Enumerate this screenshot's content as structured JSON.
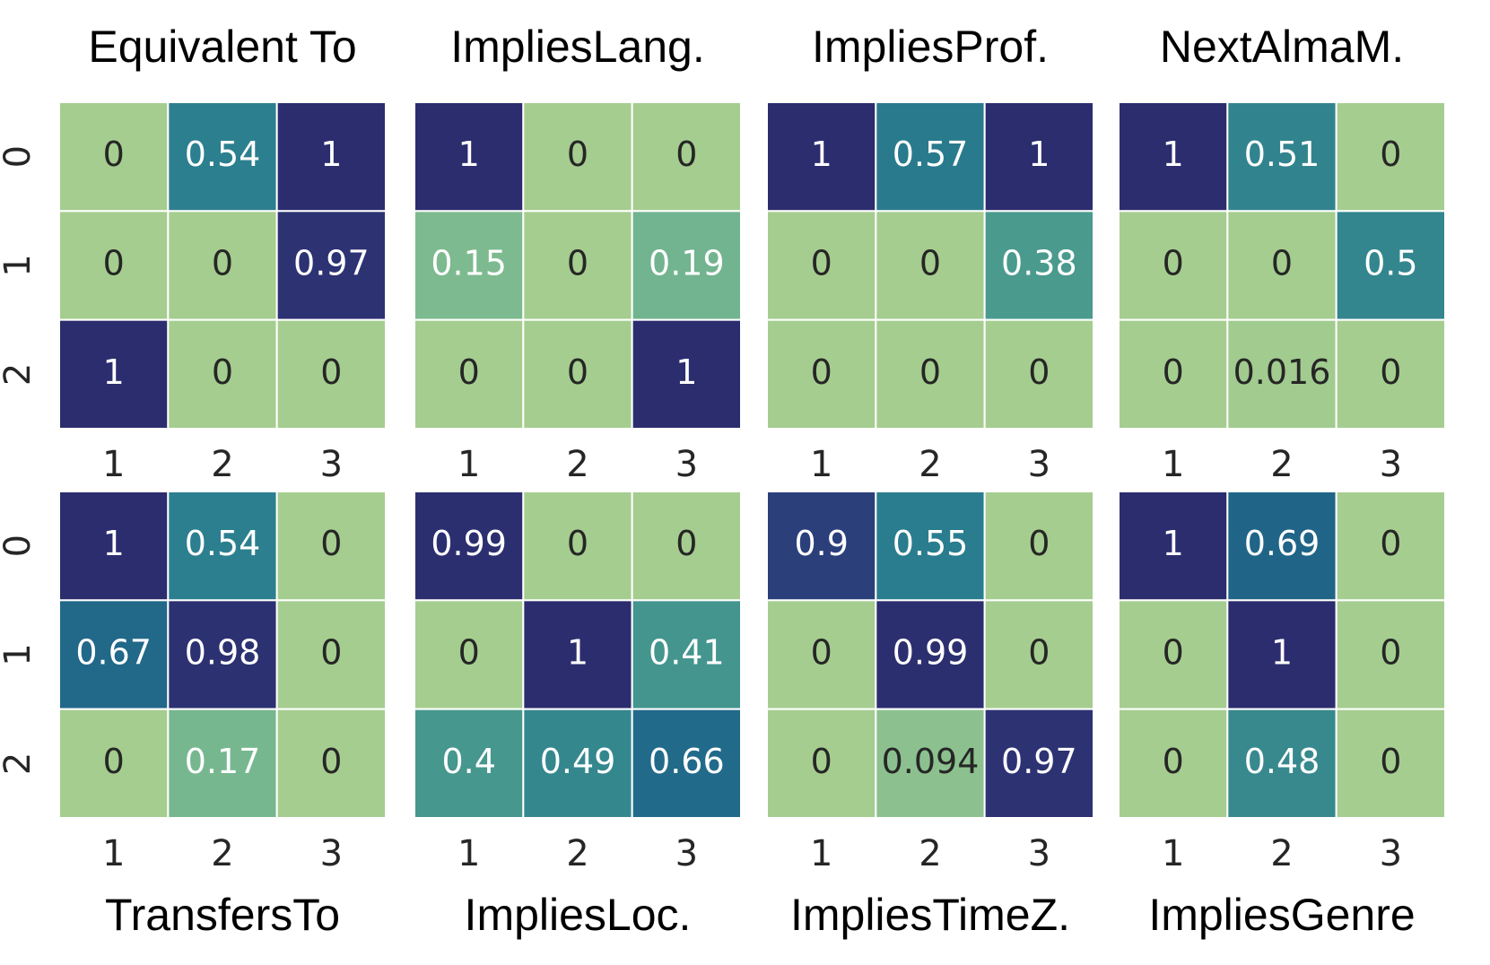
{
  "chart_data": [
    {
      "type": "heatmap",
      "title": "Equivalent To",
      "title_position": "top",
      "x": [
        "1",
        "2",
        "3"
      ],
      "y": [
        "0",
        "1",
        "2"
      ],
      "values": [
        [
          0,
          0.54,
          1
        ],
        [
          0,
          0,
          0.97
        ],
        [
          1,
          0,
          0
        ]
      ]
    },
    {
      "type": "heatmap",
      "title": "ImpliesLang.",
      "title_position": "top",
      "x": [
        "1",
        "2",
        "3"
      ],
      "y": [
        "0",
        "1",
        "2"
      ],
      "values": [
        [
          1,
          0,
          0
        ],
        [
          0.15,
          0,
          0.19
        ],
        [
          0,
          0,
          1
        ]
      ]
    },
    {
      "type": "heatmap",
      "title": "ImpliesProf.",
      "title_position": "top",
      "x": [
        "1",
        "2",
        "3"
      ],
      "y": [
        "0",
        "1",
        "2"
      ],
      "values": [
        [
          1,
          0.57,
          1
        ],
        [
          0,
          0,
          0.38
        ],
        [
          0,
          0,
          0
        ]
      ]
    },
    {
      "type": "heatmap",
      "title": "NextAlmaM.",
      "title_position": "top",
      "x": [
        "1",
        "2",
        "3"
      ],
      "y": [
        "0",
        "1",
        "2"
      ],
      "values": [
        [
          1,
          0.51,
          0
        ],
        [
          0,
          0,
          0.5
        ],
        [
          0,
          0.016,
          0
        ]
      ]
    },
    {
      "type": "heatmap",
      "title": "TransfersTo",
      "title_position": "bottom",
      "x": [
        "1",
        "2",
        "3"
      ],
      "y": [
        "0",
        "1",
        "2"
      ],
      "values": [
        [
          1,
          0.54,
          0
        ],
        [
          0.67,
          0.98,
          0
        ],
        [
          0,
          0.17,
          0
        ]
      ]
    },
    {
      "type": "heatmap",
      "title": "ImpliesLoc.",
      "title_position": "bottom",
      "x": [
        "1",
        "2",
        "3"
      ],
      "y": [
        "0",
        "1",
        "2"
      ],
      "values": [
        [
          0.99,
          0,
          0
        ],
        [
          0,
          1,
          0.41
        ],
        [
          0.4,
          0.49,
          0.66
        ]
      ]
    },
    {
      "type": "heatmap",
      "title": "ImpliesTimeZ.",
      "title_position": "bottom",
      "x": [
        "1",
        "2",
        "3"
      ],
      "y": [
        "0",
        "1",
        "2"
      ],
      "values": [
        [
          0.9,
          0.55,
          0
        ],
        [
          0,
          0.99,
          0
        ],
        [
          0,
          0.094,
          0.97
        ]
      ]
    },
    {
      "type": "heatmap",
      "title": "ImpliesGenre",
      "title_position": "bottom",
      "x": [
        "1",
        "2",
        "3"
      ],
      "y": [
        "0",
        "1",
        "2"
      ],
      "values": [
        [
          1,
          0.69,
          0
        ],
        [
          0,
          1,
          0
        ],
        [
          0,
          0.48,
          0
        ]
      ]
    }
  ]
}
